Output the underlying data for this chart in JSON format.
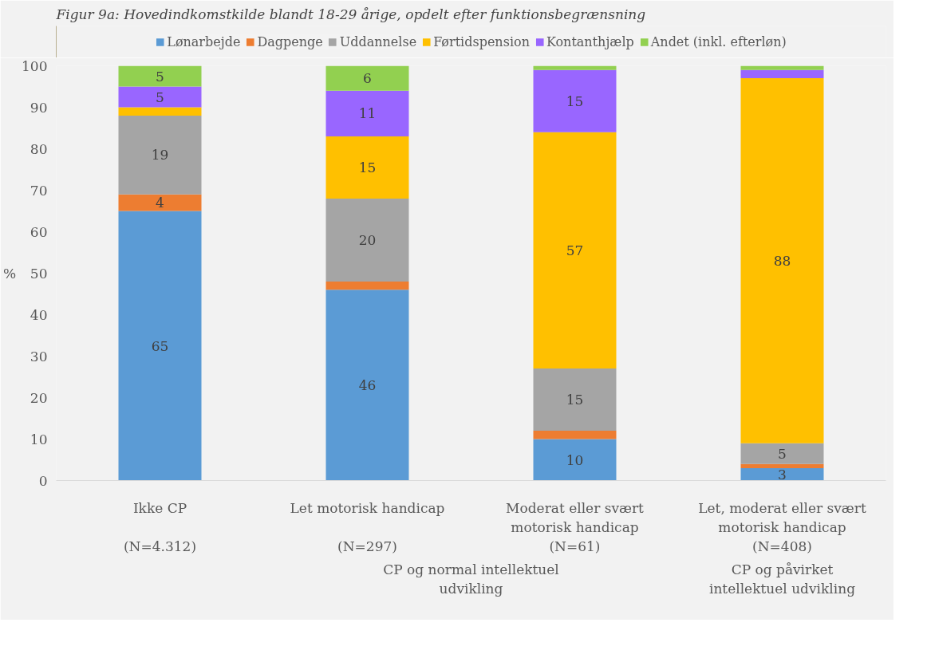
{
  "chart_data": {
    "type": "bar",
    "stacked": true,
    "title": "Figur 9a: Hovedindkomstkilde blandt 18-29 årige, opdelt efter funktionsbegrænsning",
    "ylabel": "%",
    "categories": [
      "Ikke CP\n\n(N=4.312)",
      "Let motorisk handicap\n\n(N=297)",
      "Moderat eller svært\nmotorisk handicap\n(N=61)",
      "Let, moderat eller svært\nmotorisk handicap\n(N=408)"
    ],
    "annotations": [
      "CP og normal intellektuel\nudvikling",
      "CP og påvirket\nintellektuel udvikling"
    ],
    "series": [
      {
        "name": "Lønarbejde",
        "color": "#5b9bd5",
        "values": [
          65,
          46,
          10,
          3
        ],
        "value_labels": [
          "65",
          "46",
          "10",
          "3"
        ]
      },
      {
        "name": "Dagpenge",
        "color": "#ed7d31",
        "values": [
          4,
          2,
          2,
          1
        ],
        "value_labels": [
          "4",
          null,
          null,
          null
        ]
      },
      {
        "name": "Uddannelse",
        "color": "#a5a5a5",
        "values": [
          19,
          20,
          15,
          5
        ],
        "value_labels": [
          "19",
          "20",
          "15",
          "5"
        ]
      },
      {
        "name": "Førtidspension",
        "color": "#ffc000",
        "values": [
          2,
          15,
          57,
          88
        ],
        "value_labels": [
          null,
          "15",
          "57",
          "88"
        ]
      },
      {
        "name": "Kontanthjælp",
        "color": "#9966ff",
        "values": [
          5,
          11,
          15,
          2
        ],
        "value_labels": [
          "5",
          "11",
          "15",
          null
        ]
      },
      {
        "name": "Andet (inkl. efterløn)",
        "color": "#92d050",
        "values": [
          5,
          6,
          1,
          1
        ],
        "value_labels": [
          "5",
          "6",
          null,
          null
        ]
      }
    ],
    "ylim": [
      0,
      100
    ],
    "yticks": [
      0,
      10,
      20,
      30,
      40,
      50,
      60,
      70,
      80,
      90,
      100
    ],
    "grid": false,
    "legend": "top"
  }
}
